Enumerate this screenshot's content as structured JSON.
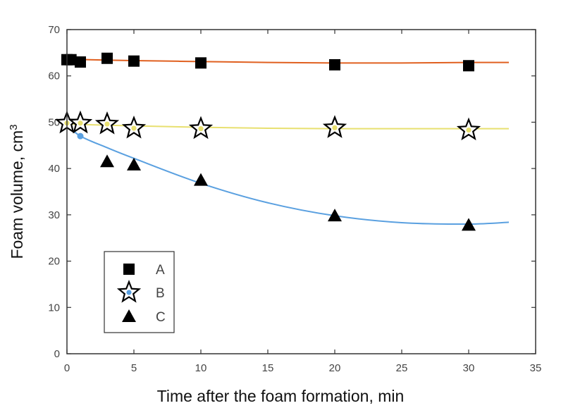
{
  "chart_data": {
    "type": "scatter",
    "xlabel": "Time after the foam formation, min",
    "ylabel": "Foam volume, cm",
    "ylabel_superscript": "3",
    "xlim": [
      0,
      35
    ],
    "ylim": [
      0,
      70
    ],
    "xticks": [
      "0",
      "5",
      "10",
      "15",
      "20",
      "25",
      "30",
      "35"
    ],
    "yticks": [
      "0",
      "10",
      "20",
      "30",
      "40",
      "50",
      "60",
      "70"
    ],
    "legend_position": "lower-left",
    "series": [
      {
        "name": "A",
        "marker": "square",
        "x": [
          0,
          0.3,
          1,
          3,
          5,
          10,
          20,
          30
        ],
        "y": [
          63.5,
          63.5,
          63,
          63.8,
          63.2,
          62.8,
          62.4,
          62.2
        ],
        "fit_x": [
          0,
          5,
          10,
          15,
          20,
          25,
          30,
          33
        ],
        "fit_y": [
          63.6,
          63.3,
          63.1,
          62.9,
          62.8,
          62.8,
          62.9,
          62.9
        ],
        "fit_color": "#e06020"
      },
      {
        "name": "B",
        "marker": "star",
        "x": [
          0,
          1,
          3,
          5,
          10,
          20,
          30
        ],
        "y": [
          49.8,
          49.8,
          49.6,
          48.7,
          48.6,
          48.8,
          48.3
        ],
        "fit_x": [
          0,
          5,
          10,
          15,
          20,
          25,
          30,
          33
        ],
        "fit_y": [
          49.6,
          49.2,
          48.9,
          48.7,
          48.6,
          48.6,
          48.6,
          48.6
        ],
        "fit_color": "#e8e070"
      },
      {
        "name": "C",
        "marker": "triangle",
        "x": [
          0,
          1,
          3,
          5,
          10,
          20,
          30
        ],
        "y": [
          49.5,
          47,
          41.5,
          40.8,
          37.5,
          29.8,
          27.8
        ],
        "fit_x": [
          0,
          1,
          3,
          5,
          10,
          15,
          20,
          25,
          30,
          33
        ],
        "fit_y": [
          49.5,
          47,
          44.5,
          42.2,
          36.8,
          32.6,
          29.8,
          28.3,
          28.0,
          28.4
        ],
        "fit_color": "#5aa0e0"
      }
    ]
  },
  "colors": {
    "marker": "#000000",
    "star_center": "#e8e070",
    "blue_point": "#5aa0e0",
    "axis": "#333333"
  }
}
